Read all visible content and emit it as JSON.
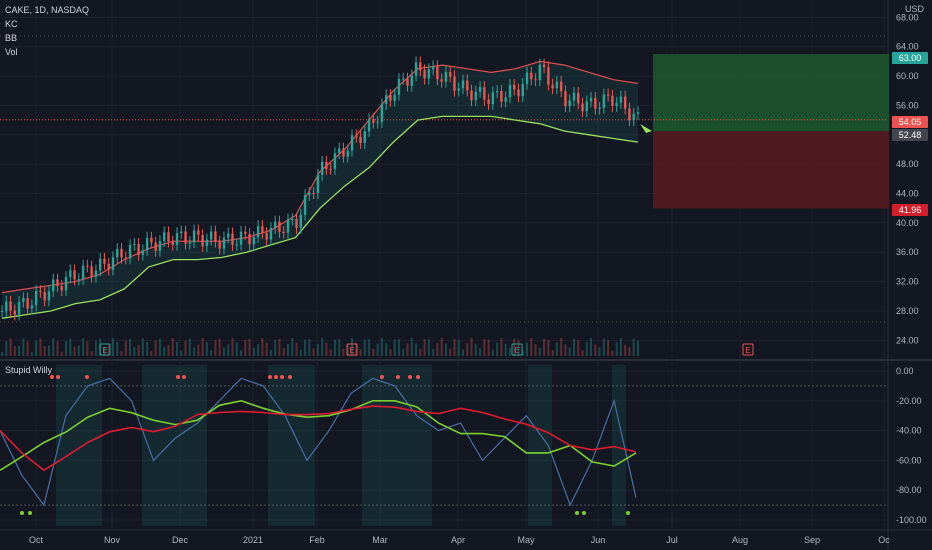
{
  "symbol_legend": "CAKE, 1D, NASDAQ",
  "indicator_labels": [
    "KC",
    "BB",
    "Vol"
  ],
  "osc_name": "Stupid Willy",
  "currency": "USD",
  "price_axis": [
    "68.00",
    "64.00",
    "60.00",
    "56.00",
    "52.00",
    "48.00",
    "44.00",
    "40.00",
    "36.00",
    "32.00",
    "28.00",
    "24.00"
  ],
  "osc_axis": [
    "0.00",
    "-20.00",
    "-40.00",
    "-60.00",
    "-80.00",
    "-100.00"
  ],
  "time_axis": [
    "Oct",
    "Nov",
    "Dec",
    "2021",
    "Feb",
    "Mar",
    "Apr",
    "May",
    "Jun",
    "Jul",
    "Aug",
    "Sep",
    "Oc"
  ],
  "tags": {
    "target": "63.00",
    "current": "54.05",
    "entry": "52.48",
    "stop": "41.96"
  },
  "earnings_marker": "E",
  "colors": {
    "bg": "#131722",
    "up": "#26a69a",
    "down": "#ef5350",
    "green_band": "#9be05f",
    "red_band": "#e05050",
    "target_zone": "#1e5b2e",
    "stop_zone": "#5a1a22",
    "osc_blue": "#4a6fa5",
    "osc_red": "#e01b2f",
    "osc_green": "#7cd12f"
  },
  "chart_data": {
    "type": "line",
    "title": "CAKE, 1D, NASDAQ",
    "ylim": [
      22,
      69
    ],
    "series": [
      {
        "name": "KC",
        "values": [
          30.5,
          31,
          31.5,
          32,
          33,
          35,
          36.5,
          37.5,
          37.5,
          37.5,
          38,
          39,
          41,
          47,
          50,
          54,
          58,
          61,
          61.5,
          61,
          60.5,
          61,
          62,
          61.5,
          60.5,
          59.5,
          59
        ]
      },
      {
        "name": "BB",
        "values": [
          27,
          27.5,
          28,
          29,
          29.5,
          31,
          34,
          35,
          35,
          35.3,
          36,
          37,
          38,
          42,
          45,
          47.5,
          51,
          54,
          54.5,
          54.5,
          54.5,
          54,
          53.5,
          52.5,
          52,
          51.5,
          51
        ]
      }
    ],
    "closes": [
      28,
      29,
      31,
      33,
      34,
      36,
      37,
      38,
      38,
      37.5,
      38,
      39,
      40,
      47,
      50,
      53,
      58,
      61,
      60,
      58,
      57,
      58,
      61,
      57,
      56,
      57,
      54.05
    ],
    "oscillator": {
      "name": "Stupid Willy",
      "ylim": [
        -100,
        0
      ],
      "values": [
        -40,
        -70,
        -90,
        -30,
        -10,
        -5,
        -20,
        -60,
        -45,
        -35,
        -20,
        -5,
        -10,
        -30,
        -60,
        -40,
        -15,
        -5,
        -10,
        -30,
        -40,
        -35,
        -60,
        -45,
        -30,
        -50,
        -90,
        -60,
        -20,
        -85
      ]
    },
    "levels": {
      "target": 63.0,
      "current": 54.05,
      "entry": 52.48,
      "stop": 41.96
    }
  }
}
